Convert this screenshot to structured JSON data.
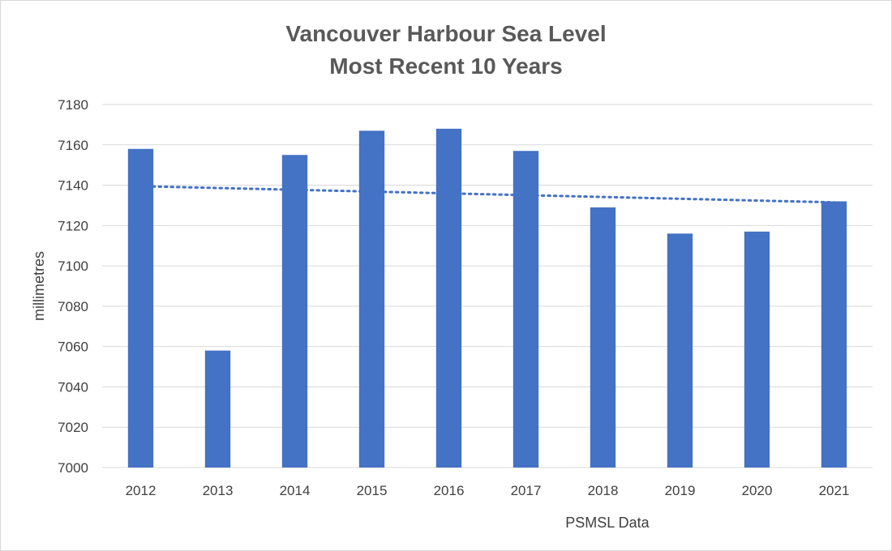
{
  "chart_data": {
    "type": "bar",
    "title": "Vancouver Harbour Sea Level",
    "subtitle": "Most Recent 10 Years",
    "xlabel": "PSMSL Data",
    "ylabel": "millimetres",
    "categories": [
      "2012",
      "2013",
      "2014",
      "2015",
      "2016",
      "2017",
      "2018",
      "2019",
      "2020",
      "2021"
    ],
    "values": [
      7158,
      7058,
      7155,
      7167,
      7168,
      7157,
      7129,
      7116,
      7117,
      7132
    ],
    "ylim": [
      7000,
      7180
    ],
    "yticks": [
      7000,
      7020,
      7040,
      7060,
      7080,
      7100,
      7120,
      7140,
      7160,
      7180
    ],
    "grid": true,
    "trendline": {
      "type": "linear",
      "style": "dotted",
      "start": 7139.5,
      "end": 7131.5
    },
    "colors": {
      "bar": "#4472c4",
      "trendline": "#4472c4",
      "grid": "#d9d9d9",
      "text": "#595959"
    }
  }
}
